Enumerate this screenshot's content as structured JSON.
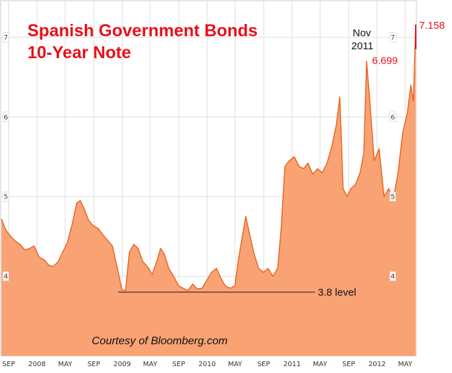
{
  "chart_data": {
    "type": "area",
    "title_lines": [
      "Spanish Government Bonds",
      "10-Year Note"
    ],
    "credit": "Courtesy of Bloomberg.com",
    "x_ticks": [
      "SEP",
      "2008",
      "MAY",
      "SEP",
      "2009",
      "MAY",
      "SEP",
      "2010",
      "MAY",
      "SEP",
      "2011",
      "MAY",
      "SEP",
      "2012",
      "MAY"
    ],
    "y_ticks": [
      "4",
      "5",
      "6",
      "7"
    ],
    "ylim": [
      3.0,
      7.45
    ],
    "xlim": [
      "2007-08-01",
      "2012-06-15"
    ],
    "grid": true,
    "colors": {
      "area": "#f9a273",
      "line": "#e8601c",
      "annotation_red": "#e8101a",
      "grid": "#dddddd"
    },
    "series": [
      {
        "points": [
          [
            "2007-08-01",
            4.72
          ],
          [
            "2007-08-20",
            4.58
          ],
          [
            "2007-09-10",
            4.5
          ],
          [
            "2007-10-01",
            4.44
          ],
          [
            "2007-10-20",
            4.4
          ],
          [
            "2007-11-10",
            4.33
          ],
          [
            "2007-12-01",
            4.35
          ],
          [
            "2007-12-20",
            4.38
          ],
          [
            "2008-01-10",
            4.24
          ],
          [
            "2008-01-31",
            4.21
          ],
          [
            "2008-02-20",
            4.14
          ],
          [
            "2008-03-10",
            4.12
          ],
          [
            "2008-03-31",
            4.18
          ],
          [
            "2008-04-20",
            4.3
          ],
          [
            "2008-05-10",
            4.42
          ],
          [
            "2008-05-31",
            4.65
          ],
          [
            "2008-06-20",
            4.92
          ],
          [
            "2008-07-05",
            4.95
          ],
          [
            "2008-07-20",
            4.86
          ],
          [
            "2008-08-10",
            4.7
          ],
          [
            "2008-08-31",
            4.63
          ],
          [
            "2008-09-20",
            4.6
          ],
          [
            "2008-10-10",
            4.52
          ],
          [
            "2008-10-31",
            4.45
          ],
          [
            "2008-11-20",
            4.38
          ],
          [
            "2008-12-10",
            4.12
          ],
          [
            "2008-12-31",
            3.83
          ],
          [
            "2009-01-15",
            3.82
          ],
          [
            "2009-02-01",
            4.3
          ],
          [
            "2009-02-20",
            4.4
          ],
          [
            "2009-03-10",
            4.35
          ],
          [
            "2009-03-31",
            4.18
          ],
          [
            "2009-04-20",
            4.12
          ],
          [
            "2009-05-10",
            4.02
          ],
          [
            "2009-05-31",
            4.2
          ],
          [
            "2009-06-15",
            4.35
          ],
          [
            "2009-07-01",
            4.28
          ],
          [
            "2009-07-20",
            4.1
          ],
          [
            "2009-08-10",
            4.0
          ],
          [
            "2009-08-31",
            3.88
          ],
          [
            "2009-09-20",
            3.85
          ],
          [
            "2009-10-10",
            3.82
          ],
          [
            "2009-10-31",
            3.9
          ],
          [
            "2009-11-20",
            3.84
          ],
          [
            "2009-12-10",
            3.85
          ],
          [
            "2009-12-31",
            3.95
          ],
          [
            "2010-01-20",
            4.05
          ],
          [
            "2010-02-10",
            4.1
          ],
          [
            "2010-02-28",
            3.98
          ],
          [
            "2010-03-20",
            3.88
          ],
          [
            "2010-04-10",
            3.85
          ],
          [
            "2010-04-30",
            3.88
          ],
          [
            "2010-05-15",
            4.2
          ],
          [
            "2010-06-01",
            4.5
          ],
          [
            "2010-06-16",
            4.75
          ],
          [
            "2010-07-01",
            4.55
          ],
          [
            "2010-07-20",
            4.3
          ],
          [
            "2010-08-10",
            4.1
          ],
          [
            "2010-08-31",
            4.05
          ],
          [
            "2010-09-20",
            4.1
          ],
          [
            "2010-10-10",
            4.0
          ],
          [
            "2010-10-31",
            4.1
          ],
          [
            "2010-11-15",
            4.6
          ],
          [
            "2010-12-01",
            5.38
          ],
          [
            "2010-12-20",
            5.45
          ],
          [
            "2011-01-10",
            5.5
          ],
          [
            "2011-01-31",
            5.38
          ],
          [
            "2011-02-20",
            5.35
          ],
          [
            "2011-03-10",
            5.42
          ],
          [
            "2011-03-31",
            5.28
          ],
          [
            "2011-04-20",
            5.35
          ],
          [
            "2011-05-10",
            5.3
          ],
          [
            "2011-05-31",
            5.42
          ],
          [
            "2011-06-20",
            5.62
          ],
          [
            "2011-07-10",
            5.9
          ],
          [
            "2011-07-25",
            6.25
          ],
          [
            "2011-08-08",
            5.1
          ],
          [
            "2011-08-25",
            5.0
          ],
          [
            "2011-09-10",
            5.1
          ],
          [
            "2011-09-30",
            5.15
          ],
          [
            "2011-10-20",
            5.3
          ],
          [
            "2011-11-05",
            5.55
          ],
          [
            "2011-11-17",
            6.699
          ],
          [
            "2011-12-01",
            6.2
          ],
          [
            "2011-12-20",
            5.45
          ],
          [
            "2012-01-10",
            5.6
          ],
          [
            "2012-01-31",
            5.0
          ],
          [
            "2012-02-20",
            5.1
          ],
          [
            "2012-03-10",
            4.95
          ],
          [
            "2012-03-31",
            5.3
          ],
          [
            "2012-04-20",
            5.8
          ],
          [
            "2012-05-10",
            6.05
          ],
          [
            "2012-05-25",
            6.4
          ],
          [
            "2012-06-05",
            6.2
          ],
          [
            "2012-06-15",
            7.158
          ]
        ]
      }
    ],
    "annotations": [
      {
        "id": "level-line",
        "label": "3.8 level",
        "value": 3.8,
        "from": "2008-12-15",
        "to": "2011-04-10"
      },
      {
        "id": "nov-2011",
        "label_lines": [
          "Nov",
          "2011"
        ],
        "value_label": "6.699",
        "date": "2011-11-17",
        "value": 6.699
      },
      {
        "id": "latest",
        "value_label": "7.158",
        "date": "2012-06-15",
        "value": 7.158
      }
    ]
  }
}
